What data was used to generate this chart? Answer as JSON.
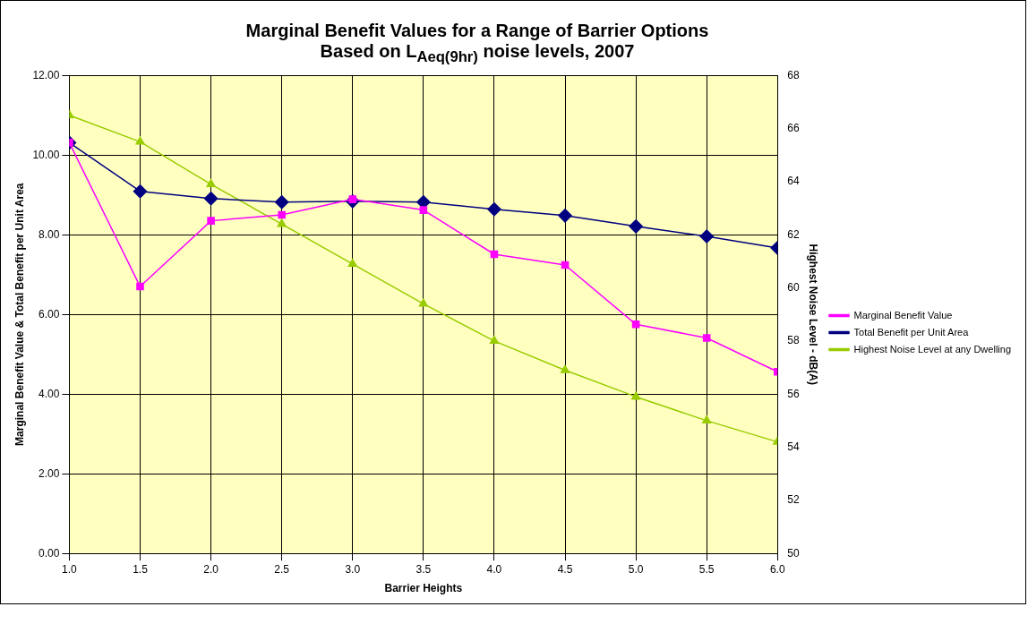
{
  "chart_data": {
    "type": "line",
    "title": "Marginal Benefit Values for a Range of Barrier Options",
    "subtitle": "Based on L$_{Aeq(9hr)}$ noise levels, 2007",
    "xlabel": "Barrier Heights",
    "ylabel": "Marginal Benefit Value & Total Benefit per Unit Area",
    "y2label": "Highest Noise Level - dB(A)",
    "x": [
      1.0,
      1.5,
      2.0,
      2.5,
      3.0,
      3.5,
      4.0,
      4.5,
      5.0,
      5.5,
      6.0
    ],
    "xlim": [
      1.0,
      6.0
    ],
    "xticks": [
      {
        "value": 1,
        "label": "1.0"
      },
      {
        "value": 1.5,
        "label": "1.5"
      },
      {
        "value": 2,
        "label": "2.0"
      },
      {
        "value": 2.5,
        "label": "2.5"
      },
      {
        "value": 3,
        "label": "3.0"
      },
      {
        "value": 3.5,
        "label": "3.5"
      },
      {
        "value": 4,
        "label": "4.0"
      },
      {
        "value": 4.5,
        "label": "4.5"
      },
      {
        "value": 5,
        "label": "5.0"
      },
      {
        "value": 5.5,
        "label": "5.5"
      },
      {
        "value": 6,
        "label": "6.0"
      }
    ],
    "ylim": [
      0,
      12
    ],
    "yticks": [
      {
        "value": 0,
        "label": "0.00"
      },
      {
        "value": 2,
        "label": "2.00"
      },
      {
        "value": 4,
        "label": "4.00"
      },
      {
        "value": 6,
        "label": "6.00"
      },
      {
        "value": 8,
        "label": "8.00"
      },
      {
        "value": 10,
        "label": "10.00"
      },
      {
        "value": 12,
        "label": "12.00"
      }
    ],
    "y2lim": [
      50,
      68
    ],
    "y2ticks": [
      50,
      52,
      54,
      56,
      58,
      60,
      62,
      64,
      66,
      68
    ],
    "series": [
      {
        "name": "Marginal Benefit Value",
        "color": "#ff00ff",
        "marker": "square",
        "values": [
          10.31,
          6.7,
          8.35,
          8.5,
          8.89,
          8.62,
          7.51,
          7.24,
          5.75,
          5.41,
          4.56
        ]
      },
      {
        "name": "Total Benefit per Unit Area",
        "color": "#000080",
        "marker": "diamond",
        "values": [
          10.31,
          9.09,
          8.91,
          8.82,
          8.84,
          8.82,
          8.64,
          8.48,
          8.21,
          7.96,
          7.67
        ]
      },
      {
        "name": "Highest Noise Level at any Dwelling",
        "color": "#99cc00",
        "marker": "triangle",
        "axis": "y2",
        "values": [
          66.5,
          65.5,
          63.9,
          62.4,
          60.9,
          59.4,
          58.0,
          56.9,
          55.9,
          55.0,
          54.2
        ]
      }
    ],
    "grid": true,
    "legend": "right",
    "line_style": "solid"
  }
}
